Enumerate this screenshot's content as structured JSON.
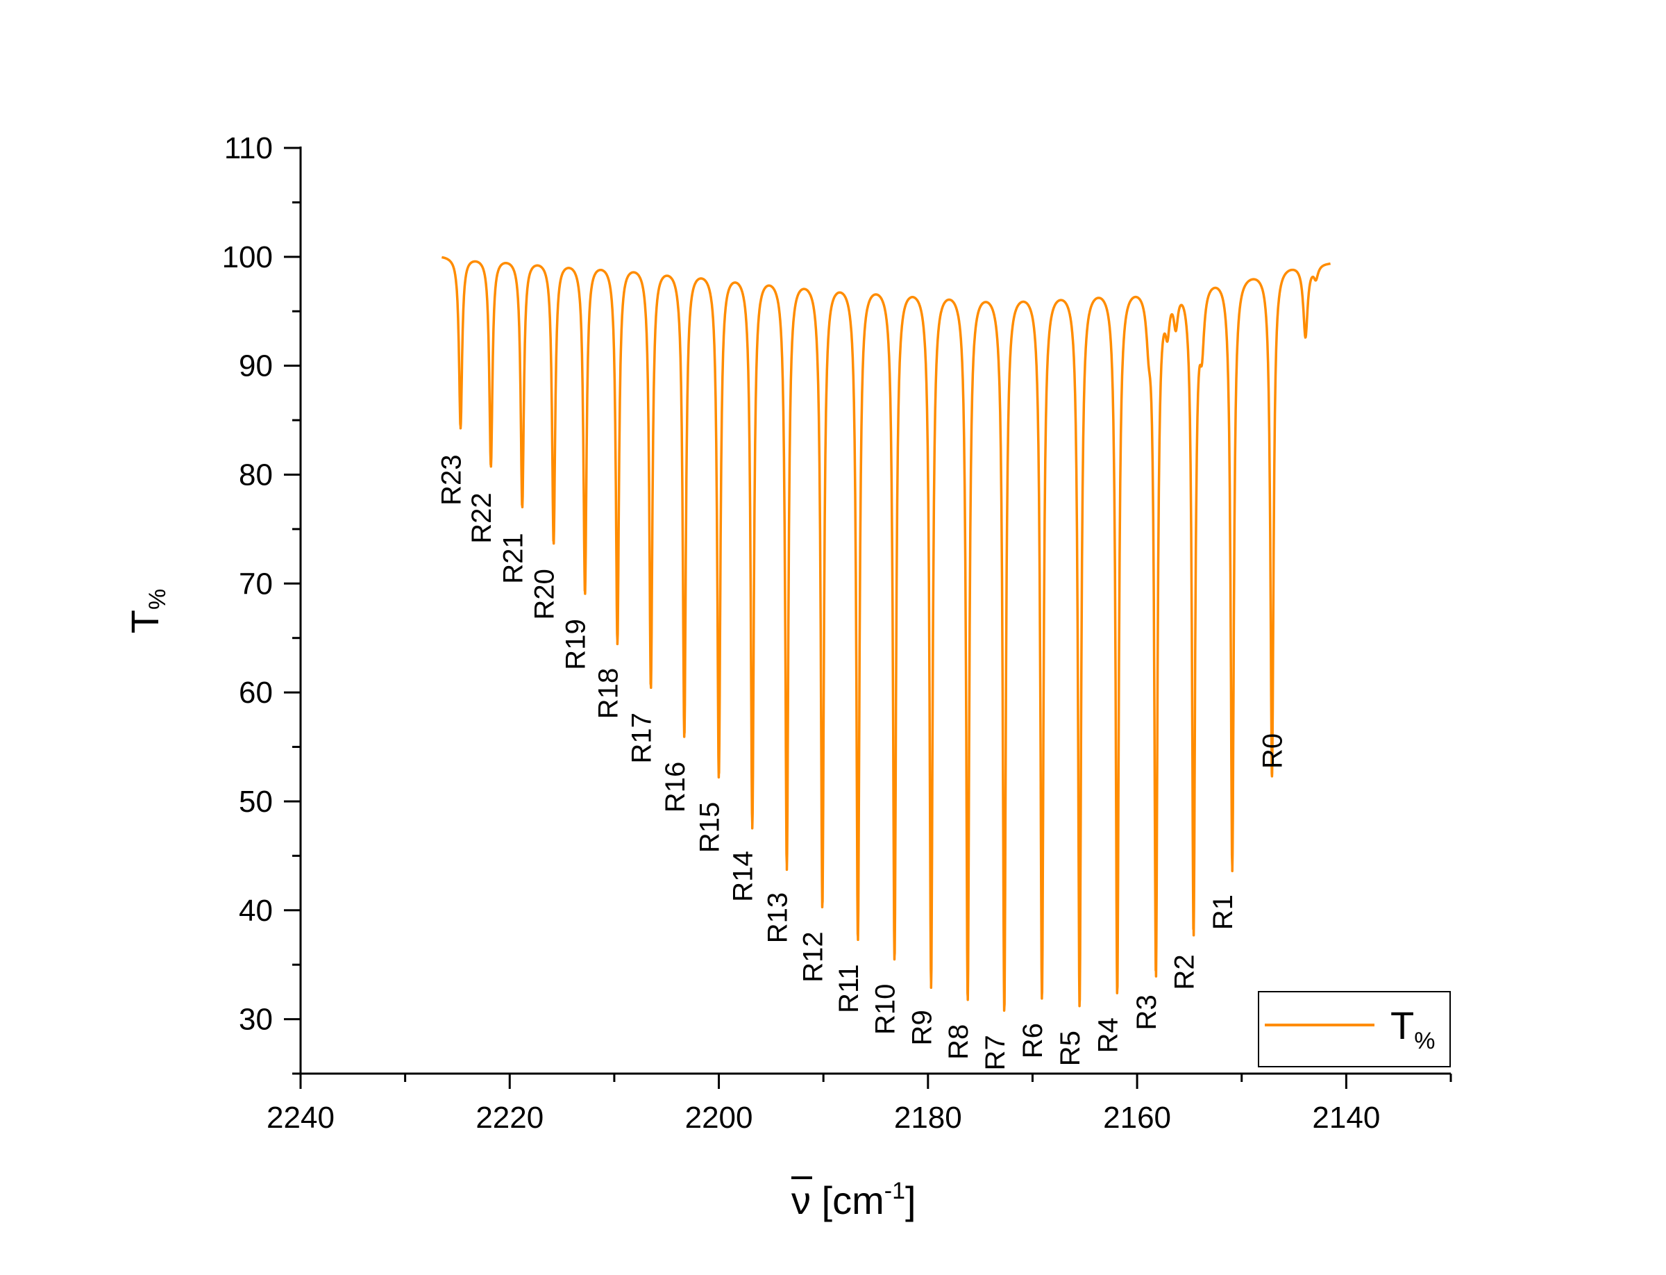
{
  "chart_data": {
    "type": "line",
    "xlabel": "ν̄ [cm⁻¹]",
    "xlabel_parts": {
      "symbol": "ν",
      "unit_open": " [cm",
      "exponent": "-1",
      "unit_close": "]"
    },
    "ylabel": "T%",
    "ylabel_parts": {
      "main": "T",
      "sub": "%"
    },
    "xlim": [
      2240,
      2130
    ],
    "ylim": [
      25,
      110
    ],
    "x_reversed": true,
    "xticks": [
      2240,
      2220,
      2200,
      2180,
      2160,
      2140
    ],
    "yticks": [
      30,
      40,
      50,
      60,
      70,
      80,
      90,
      100,
      110
    ],
    "grid": false,
    "legend": {
      "placement": "bottom-right",
      "entries": [
        {
          "main": "T",
          "sub": "%"
        }
      ]
    },
    "series": [
      {
        "name": "T%",
        "color": "#ff8c00",
        "baseline_start": 100.2,
        "range": [
          2226.5,
          2141.5
        ],
        "peaks": [
          {
            "label": "R23",
            "x": 2224.7,
            "y": 84.4,
            "baseline": 100.2
          },
          {
            "label": "R22",
            "x": 2221.8,
            "y": 80.9,
            "baseline": 100.2
          },
          {
            "label": "R21",
            "x": 2218.8,
            "y": 77.2,
            "baseline": 100.1
          },
          {
            "label": "R20",
            "x": 2215.8,
            "y": 73.9,
            "baseline": 100.0
          },
          {
            "label": "R19",
            "x": 2212.8,
            "y": 69.3,
            "baseline": 99.9
          },
          {
            "label": "R18",
            "x": 2209.7,
            "y": 64.8,
            "baseline": 99.8
          },
          {
            "label": "R17",
            "x": 2206.5,
            "y": 60.7,
            "baseline": 99.6
          },
          {
            "label": "R16",
            "x": 2203.3,
            "y": 56.2,
            "baseline": 99.4
          },
          {
            "label": "R15",
            "x": 2200.0,
            "y": 52.5,
            "baseline": 99.2
          },
          {
            "label": "R14",
            "x": 2196.8,
            "y": 48.0,
            "baseline": 99.0
          },
          {
            "label": "R13",
            "x": 2193.5,
            "y": 44.2,
            "baseline": 98.7
          },
          {
            "label": "R12",
            "x": 2190.1,
            "y": 40.6,
            "baseline": 98.4
          },
          {
            "label": "R11",
            "x": 2186.7,
            "y": 37.6,
            "baseline": 98.2
          },
          {
            "label": "R10",
            "x": 2183.2,
            "y": 35.8,
            "baseline": 98.0
          },
          {
            "label": "R9",
            "x": 2179.7,
            "y": 33.4,
            "baseline": 97.8
          },
          {
            "label": "R8",
            "x": 2176.2,
            "y": 32.1,
            "baseline": 97.6
          },
          {
            "label": "R7",
            "x": 2172.7,
            "y": 31.1,
            "baseline": 97.4
          },
          {
            "label": "R6",
            "x": 2169.1,
            "y": 32.2,
            "baseline": 97.5
          },
          {
            "label": "R5",
            "x": 2165.5,
            "y": 31.5,
            "baseline": 97.7
          },
          {
            "label": "R4",
            "x": 2161.9,
            "y": 32.7,
            "baseline": 97.9
          },
          {
            "label": "R3",
            "x": 2158.2,
            "y": 34.8,
            "baseline": 98.0
          },
          {
            "label": "R2",
            "x": 2154.6,
            "y": 38.5,
            "baseline": 98.5
          },
          {
            "label": "R1",
            "x": 2150.9,
            "y": 44.0,
            "baseline": 98.8
          },
          {
            "label": "R0",
            "x": 2147.1,
            "y": 52.3,
            "baseline": 99.2
          }
        ],
        "minor_dips": [
          {
            "x": 2158.9,
            "y": 94.5
          },
          {
            "x": 2157.1,
            "y": 94.8
          },
          {
            "x": 2156.3,
            "y": 95.0
          },
          {
            "x": 2153.8,
            "y": 93.5
          },
          {
            "x": 2143.9,
            "y": 92.9
          },
          {
            "x": 2142.9,
            "y": 98.4
          }
        ]
      }
    ]
  }
}
